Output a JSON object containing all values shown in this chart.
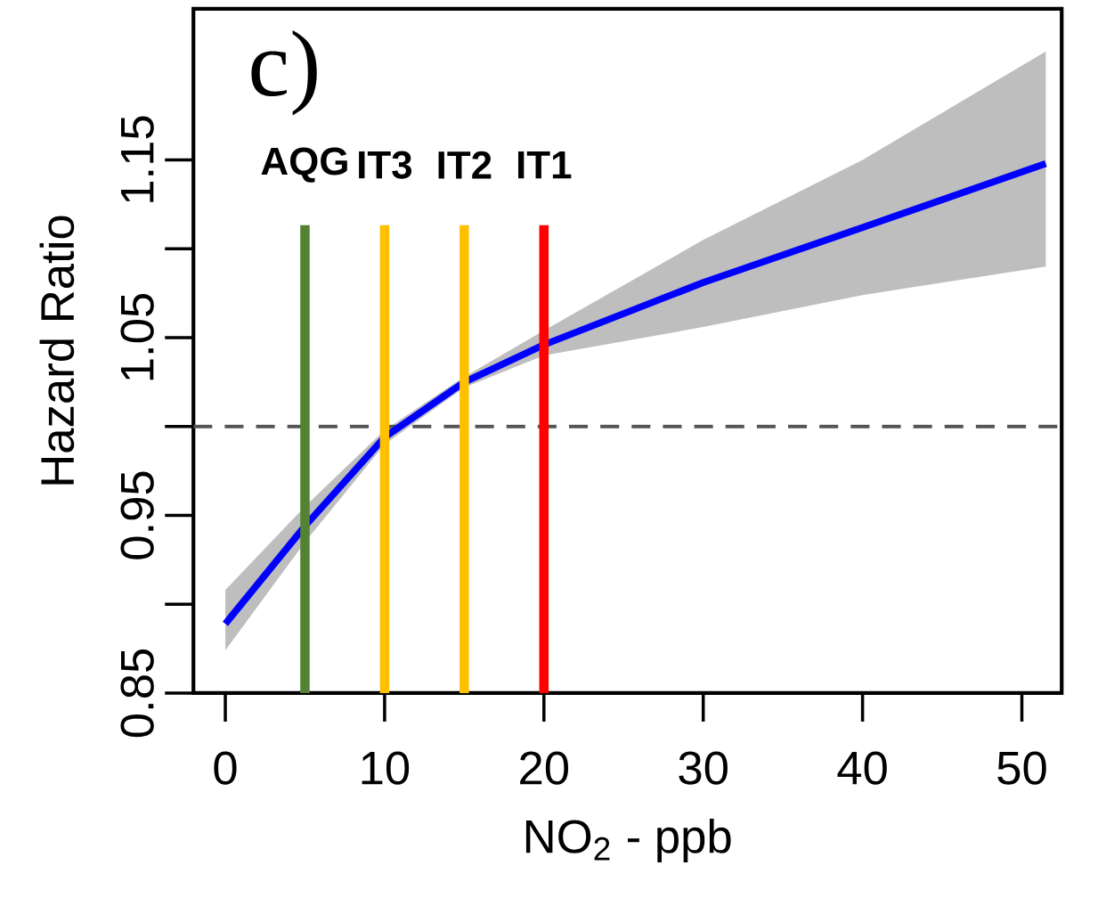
{
  "chart_data": {
    "type": "line",
    "xlabel": "NO$_{2}$ - ppb",
    "ylabel": "Hazard Ratio",
    "annotations": [
      "c)"
    ],
    "xlim": [
      -2,
      52.5
    ],
    "ylim": [
      0.85,
      1.235
    ],
    "xticks": [
      0,
      10,
      20,
      30,
      40,
      50
    ],
    "yticks": [
      0.85,
      0.95,
      1.05,
      1.15
    ],
    "series": [
      {
        "color": "#0000ff",
        "x": [
          0,
          5,
          10,
          15,
          20,
          30,
          40,
          51.5
        ],
        "values": [
          0.889,
          0.944,
          0.994,
          1.025,
          1.046,
          1.081,
          1.112,
          1.148
        ],
        "lower": [
          0.874,
          0.935,
          0.99,
          1.022,
          1.04,
          1.056,
          1.074,
          1.09
        ],
        "upper": [
          0.908,
          0.955,
          0.998,
          1.028,
          1.054,
          1.105,
          1.15,
          1.211
        ]
      }
    ],
    "ref_lines": [
      {
        "axis": "y",
        "value": 1.0,
        "color": "#555555",
        "line_style": "dashed"
      },
      {
        "axis": "x",
        "value": 5,
        "label": "AQG",
        "color": "#548235"
      },
      {
        "axis": "x",
        "value": 10,
        "label": "IT3",
        "color": "#ffc000"
      },
      {
        "axis": "x",
        "value": 15,
        "label": "IT2",
        "color": "#ffc000"
      },
      {
        "axis": "x",
        "value": 20,
        "label": "IT1",
        "color": "#ff0000"
      }
    ]
  }
}
